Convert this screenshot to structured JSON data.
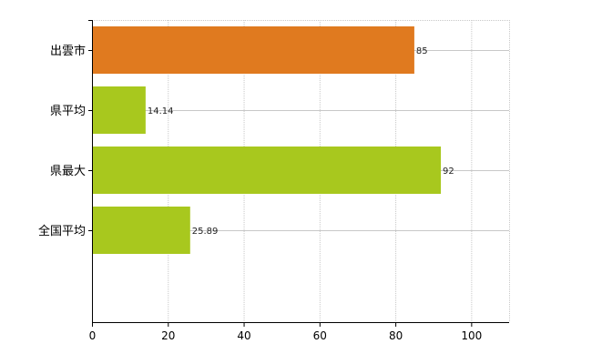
{
  "chart_data": {
    "type": "bar",
    "orientation": "horizontal",
    "categories": [
      "出雲市",
      "県平均",
      "県最大",
      "全国平均"
    ],
    "values": [
      85,
      14.14,
      92,
      25.89
    ],
    "value_labels": [
      "85",
      "14.14",
      "92",
      "25.89"
    ],
    "bar_colors": [
      "#E07A1F",
      "#A8C81E",
      "#A8C81E",
      "#A8C81E"
    ],
    "xlim": [
      0,
      110
    ],
    "xticks": [
      0,
      20,
      40,
      60,
      80,
      100
    ],
    "xtick_labels": [
      "0",
      "20",
      "40",
      "60",
      "80",
      "100"
    ],
    "grid": true,
    "legend": "none",
    "title": "",
    "xlabel": "",
    "ylabel": ""
  }
}
